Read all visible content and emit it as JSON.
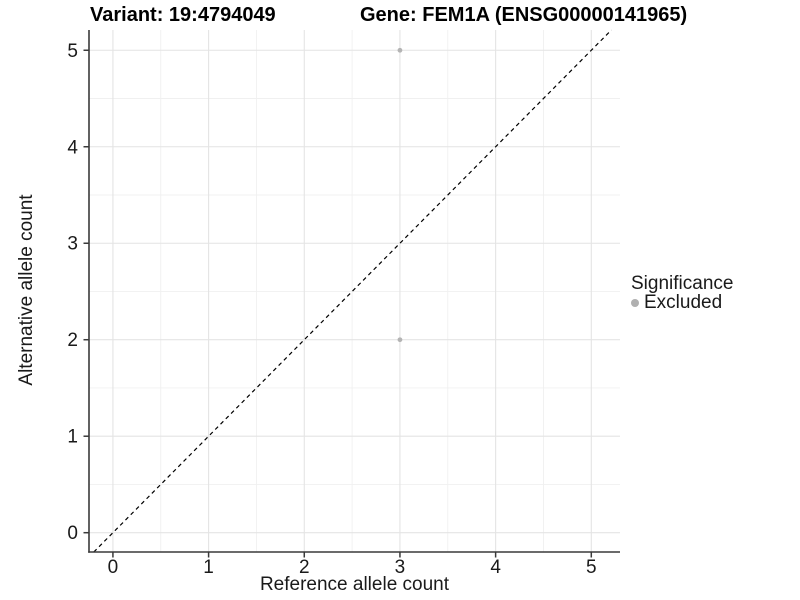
{
  "title": {
    "variant": "Variant: 19:4794049",
    "gene": "Gene: FEM1A (ENSG00000141965)"
  },
  "x_axis": {
    "label": "Reference allele count",
    "tick_labels": [
      "0",
      "1",
      "2",
      "3",
      "4",
      "5"
    ]
  },
  "y_axis": {
    "label": "Alternative allele count",
    "tick_labels": [
      "0",
      "1",
      "2",
      "3",
      "4",
      "5"
    ]
  },
  "legend": {
    "title": "Significance",
    "items": [
      {
        "label": "Excluded",
        "color": "#b0b0b0"
      }
    ]
  },
  "colors": {
    "background": "#ffffff",
    "grid_major": "#e4e4e4",
    "grid_minor": "#f0f0f0",
    "axis_line": "#3a3a3a",
    "tick_text": "#1a1a1a",
    "point": "#b4b4b4",
    "identity_line": "#000000"
  },
  "chart_data": {
    "type": "scatter",
    "title": "Variant: 19:4794049 | Gene: FEM1A (ENSG00000141965)",
    "xlabel": "Reference allele count",
    "ylabel": "Alternative allele count",
    "xlim": [
      -0.25,
      5.3
    ],
    "ylim": [
      -0.2,
      5.21
    ],
    "x_ticks": [
      0,
      1,
      2,
      3,
      4,
      5
    ],
    "y_ticks": [
      0,
      1,
      2,
      3,
      4,
      5
    ],
    "minor_tick_step": 0.5,
    "grid": "major and minor gridlines on white panel",
    "legend_position": "right",
    "series": [
      {
        "name": "Excluded",
        "color": "#b4b4b4",
        "point_radius": 2.4,
        "points": [
          [
            3,
            5
          ],
          [
            3,
            2
          ]
        ]
      }
    ],
    "annotations": [
      {
        "type": "identity-line",
        "style": "dashed",
        "color": "#000000",
        "from": [
          -0.2,
          -0.2
        ],
        "to": [
          5.21,
          5.21
        ]
      }
    ]
  }
}
